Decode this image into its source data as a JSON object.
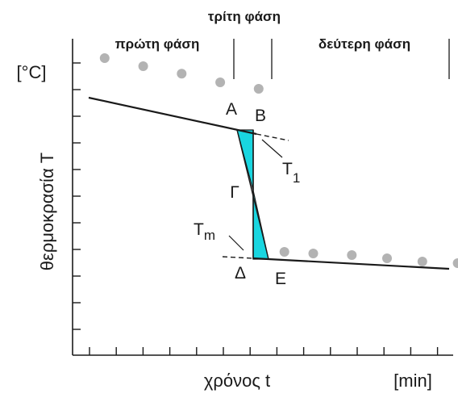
{
  "chart_data": {
    "type": "line",
    "phases": {
      "first": "πρώτη φάση",
      "third": "τρίτη φάση",
      "second": "δεύτερη φάση"
    },
    "ylabel": "θερμοκρασία T",
    "yunit": "[°C]",
    "xlabel": "χρόνος t",
    "xunit": "[min]",
    "point_labels": {
      "A": "A",
      "B": "B",
      "Gamma": "Γ",
      "Delta": "Δ",
      "E": "E",
      "T1": "T",
      "T1_sub": "1",
      "Tm": "T",
      "Tm_sub": "m"
    },
    "colors": {
      "shade": "#19d6e0",
      "marker": "#b3b3b3",
      "line": "#1a1a1a"
    },
    "grid": false,
    "series": [
      {
        "values": [
          [
            1.0,
            4.1
          ],
          [
            2.2,
            3.85
          ],
          [
            3.4,
            3.62
          ],
          [
            4.6,
            3.35
          ],
          [
            5.8,
            3.15
          ]
        ]
      },
      {
        "values": [
          [
            6.6,
            -1.9
          ],
          [
            7.5,
            -1.95
          ],
          [
            8.7,
            -2.0
          ],
          [
            9.8,
            -2.1
          ],
          [
            10.9,
            -2.2
          ],
          [
            12.0,
            -2.25
          ]
        ]
      }
    ]
  }
}
